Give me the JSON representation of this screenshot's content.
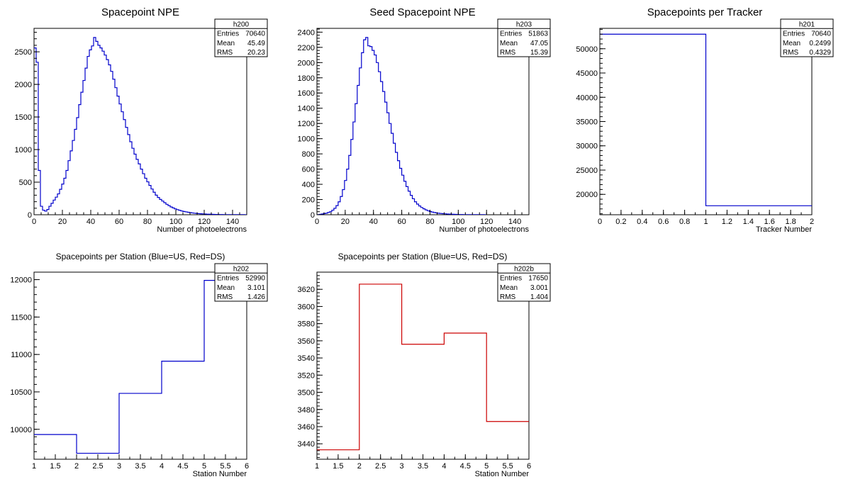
{
  "chart_data": [
    {
      "type": "histogram",
      "title": "Spacepoint NPE",
      "stats": {
        "name": "h200",
        "rows": [
          [
            "Entries",
            "70640"
          ],
          [
            "Mean",
            "45.49"
          ],
          [
            "RMS",
            "20.23"
          ]
        ]
      },
      "xlabel": "Number of photoelectrons",
      "ylabel": "",
      "xlim": [
        0,
        150
      ],
      "ylim": [
        0,
        2860
      ],
      "xticks": [
        0,
        20,
        40,
        60,
        80,
        100,
        120,
        140
      ],
      "yticks": [
        0,
        500,
        1000,
        1500,
        2000,
        2500
      ],
      "color": "#0000cc",
      "bin_edges_start": 0,
      "bin_width": 1.5,
      "values": [
        2560,
        2340,
        680,
        130,
        70,
        55,
        80,
        130,
        175,
        225,
        270,
        320,
        390,
        470,
        560,
        680,
        830,
        980,
        1140,
        1310,
        1490,
        1690,
        1880,
        2060,
        2250,
        2430,
        2530,
        2590,
        2720,
        2660,
        2600,
        2560,
        2510,
        2450,
        2380,
        2300,
        2200,
        2080,
        1950,
        1820,
        1700,
        1580,
        1460,
        1340,
        1230,
        1120,
        1020,
        930,
        850,
        780,
        700,
        630,
        560,
        505,
        450,
        395,
        345,
        300,
        265,
        235,
        210,
        185,
        160,
        140,
        120,
        105,
        90,
        78,
        68,
        58,
        50,
        44,
        38,
        33,
        28,
        24,
        20,
        17,
        15,
        13,
        11,
        9,
        8,
        7,
        6,
        5,
        4,
        3,
        3,
        2,
        2,
        2,
        1,
        1,
        1,
        1,
        1,
        1,
        1,
        0
      ]
    },
    {
      "type": "histogram",
      "title": "Seed Spacepoint NPE",
      "stats": {
        "name": "h203",
        "rows": [
          [
            "Entries",
            "51863"
          ],
          [
            "Mean",
            "47.05"
          ],
          [
            "RMS",
            "15.39"
          ]
        ]
      },
      "xlabel": "Number of photoelectrons",
      "ylabel": "",
      "xlim": [
        0,
        150
      ],
      "ylim": [
        0,
        2450
      ],
      "xticks": [
        0,
        20,
        40,
        60,
        80,
        100,
        120,
        140
      ],
      "yticks": [
        0,
        200,
        400,
        600,
        800,
        1000,
        1200,
        1400,
        1600,
        1800,
        2000,
        2200,
        2400
      ],
      "color": "#0000cc",
      "bin_edges_start": 0,
      "bin_width": 1.5,
      "values": [
        2,
        5,
        10,
        15,
        20,
        30,
        40,
        60,
        85,
        120,
        170,
        240,
        330,
        450,
        600,
        780,
        990,
        1220,
        1460,
        1700,
        1930,
        2130,
        2300,
        2330,
        2220,
        2210,
        2160,
        2100,
        2000,
        1880,
        1750,
        1620,
        1480,
        1340,
        1200,
        1070,
        940,
        820,
        710,
        610,
        520,
        440,
        370,
        310,
        255,
        210,
        170,
        140,
        115,
        95,
        78,
        64,
        52,
        43,
        35,
        29,
        24,
        20,
        17,
        14,
        12,
        10,
        8,
        7,
        6,
        5,
        4,
        3,
        3,
        2,
        2,
        2,
        1,
        1,
        1,
        1,
        1,
        1,
        1,
        0
      ]
    },
    {
      "type": "histogram",
      "title": "Spacepoints per Tracker",
      "stats": {
        "name": "h201",
        "rows": [
          [
            "Entries",
            "70640"
          ],
          [
            "Mean",
            "0.2499"
          ],
          [
            "RMS",
            "0.4329"
          ]
        ]
      },
      "xlabel": "Tracker Number",
      "ylabel": "",
      "xlim": [
        0,
        2
      ],
      "ylim": [
        15800,
        54200
      ],
      "xticks": [
        0,
        0.2,
        0.4,
        0.6,
        0.8,
        1,
        1.2,
        1.4,
        1.6,
        1.8,
        2
      ],
      "yticks": [
        20000,
        25000,
        30000,
        35000,
        40000,
        45000,
        50000
      ],
      "color": "#0000cc",
      "bin_edges_start": 0,
      "bin_width": 1,
      "values": [
        53000,
        17650
      ]
    },
    {
      "type": "histogram",
      "title": "Spacepoints per Station (Blue=US, Red=DS)",
      "stats": {
        "name": "h202",
        "rows": [
          [
            "Entries",
            "52990"
          ],
          [
            "Mean",
            "3.101"
          ],
          [
            "RMS",
            "1.426"
          ]
        ]
      },
      "xlabel": "Station Number",
      "ylabel": "",
      "xlim": [
        1,
        6
      ],
      "ylim": [
        9600,
        12100
      ],
      "xticks": [
        1,
        1.5,
        2,
        2.5,
        3,
        3.5,
        4,
        4.5,
        5,
        5.5,
        6
      ],
      "yticks": [
        10000,
        10500,
        11000,
        11500,
        12000
      ],
      "color": "#0000cc",
      "bin_edges_start": 1,
      "bin_width": 1,
      "values": [
        9930,
        9680,
        10480,
        10910,
        11990
      ]
    },
    {
      "type": "histogram",
      "title": "Spacepoints per Station (Blue=US, Red=DS)",
      "stats": {
        "name": "h202b",
        "rows": [
          [
            "Entries",
            "17650"
          ],
          [
            "Mean",
            "3.001"
          ],
          [
            "RMS",
            "1.404"
          ]
        ]
      },
      "xlabel": "Station Number",
      "ylabel": "",
      "xlim": [
        1,
        6
      ],
      "ylim": [
        3422,
        3640
      ],
      "xticks": [
        1,
        1.5,
        2,
        2.5,
        3,
        3.5,
        4,
        4.5,
        5,
        5.5,
        6
      ],
      "yticks": [
        3440,
        3460,
        3480,
        3500,
        3520,
        3540,
        3560,
        3580,
        3600,
        3620
      ],
      "color": "#cc0000",
      "bin_edges_start": 1,
      "bin_width": 1,
      "values": [
        3433,
        3626,
        3556,
        3569,
        3466
      ]
    }
  ]
}
